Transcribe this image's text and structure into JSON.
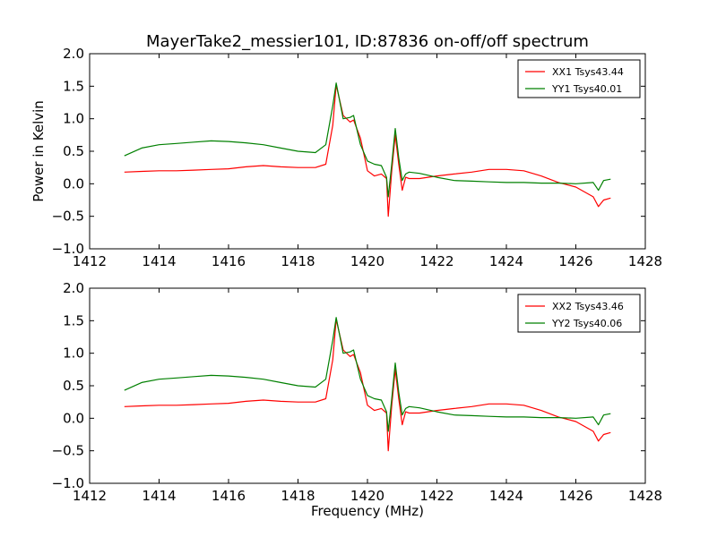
{
  "figure_title": "MayerTake2_messier101, ID:87836 on-off/off spectrum",
  "colors": {
    "xx": "#ff0000",
    "yy": "#008000",
    "axes": "#000000",
    "background": "#ffffff"
  },
  "chart_data": [
    {
      "type": "line",
      "title": "MayerTake2_messier101, ID:87836 on-off/off spectrum",
      "xlabel": "",
      "ylabel": "Power in Kelvin",
      "xlim": [
        1412,
        1428
      ],
      "ylim": [
        -1.0,
        2.0
      ],
      "xticks": [
        "1412",
        "1414",
        "1416",
        "1418",
        "1420",
        "1422",
        "1424",
        "1426",
        "1428"
      ],
      "yticks": [
        "−1.0",
        "−0.5",
        "0.0",
        "0.5",
        "1.0",
        "1.5",
        "2.0"
      ],
      "grid": false,
      "legend_position": "top-right",
      "x": [
        1413.0,
        1413.5,
        1414.0,
        1414.5,
        1415.0,
        1415.5,
        1416.0,
        1416.5,
        1417.0,
        1417.5,
        1418.0,
        1418.5,
        1418.8,
        1419.0,
        1419.1,
        1419.3,
        1419.5,
        1419.6,
        1419.8,
        1420.0,
        1420.2,
        1420.4,
        1420.55,
        1420.6,
        1420.7,
        1420.8,
        1420.9,
        1421.0,
        1421.1,
        1421.2,
        1421.5,
        1422.0,
        1422.5,
        1423.0,
        1423.5,
        1424.0,
        1424.5,
        1425.0,
        1425.5,
        1426.0,
        1426.5,
        1426.65,
        1426.8,
        1427.0
      ],
      "series": [
        {
          "name": "XX1 Tsys43.44",
          "color": "#ff0000",
          "values": [
            0.18,
            0.19,
            0.2,
            0.2,
            0.21,
            0.22,
            0.23,
            0.26,
            0.28,
            0.26,
            0.25,
            0.25,
            0.3,
            0.9,
            1.52,
            1.05,
            0.95,
            0.98,
            0.7,
            0.2,
            0.12,
            0.15,
            0.08,
            -0.5,
            0.2,
            0.75,
            0.3,
            -0.1,
            0.1,
            0.08,
            0.08,
            0.12,
            0.15,
            0.18,
            0.22,
            0.22,
            0.2,
            0.12,
            0.02,
            -0.05,
            -0.2,
            -0.35,
            -0.25,
            -0.22
          ]
        },
        {
          "name": "YY1 Tsys40.01",
          "color": "#008000",
          "values": [
            0.43,
            0.55,
            0.6,
            0.62,
            0.64,
            0.66,
            0.65,
            0.63,
            0.6,
            0.55,
            0.5,
            0.48,
            0.6,
            1.2,
            1.55,
            1.0,
            1.02,
            1.05,
            0.6,
            0.35,
            0.3,
            0.28,
            0.1,
            -0.2,
            0.3,
            0.85,
            0.4,
            0.05,
            0.15,
            0.18,
            0.16,
            0.1,
            0.05,
            0.04,
            0.03,
            0.02,
            0.02,
            0.01,
            0.01,
            0.0,
            0.02,
            -0.1,
            0.05,
            0.07
          ]
        }
      ]
    },
    {
      "type": "line",
      "title": "",
      "xlabel": "Frequency (MHz)",
      "ylabel": "",
      "xlim": [
        1412,
        1428
      ],
      "ylim": [
        -1.0,
        2.0
      ],
      "xticks": [
        "1412",
        "1414",
        "1416",
        "1418",
        "1420",
        "1422",
        "1424",
        "1426",
        "1428"
      ],
      "yticks": [
        "−1.0",
        "−0.5",
        "0.0",
        "0.5",
        "1.0",
        "1.5",
        "2.0"
      ],
      "grid": false,
      "legend_position": "top-right",
      "x": [
        1413.0,
        1413.5,
        1414.0,
        1414.5,
        1415.0,
        1415.5,
        1416.0,
        1416.5,
        1417.0,
        1417.5,
        1418.0,
        1418.5,
        1418.8,
        1419.0,
        1419.1,
        1419.3,
        1419.5,
        1419.6,
        1419.8,
        1420.0,
        1420.2,
        1420.4,
        1420.55,
        1420.6,
        1420.7,
        1420.8,
        1420.9,
        1421.0,
        1421.1,
        1421.2,
        1421.5,
        1422.0,
        1422.5,
        1423.0,
        1423.5,
        1424.0,
        1424.5,
        1425.0,
        1425.5,
        1426.0,
        1426.5,
        1426.65,
        1426.8,
        1427.0
      ],
      "series": [
        {
          "name": "XX2 Tsys43.46",
          "color": "#ff0000",
          "values": [
            0.18,
            0.19,
            0.2,
            0.2,
            0.21,
            0.22,
            0.23,
            0.26,
            0.28,
            0.26,
            0.25,
            0.25,
            0.3,
            0.9,
            1.52,
            1.05,
            0.95,
            0.98,
            0.7,
            0.2,
            0.12,
            0.15,
            0.08,
            -0.5,
            0.2,
            0.75,
            0.3,
            -0.1,
            0.1,
            0.08,
            0.08,
            0.12,
            0.15,
            0.18,
            0.22,
            0.22,
            0.2,
            0.12,
            0.02,
            -0.05,
            -0.2,
            -0.35,
            -0.25,
            -0.22
          ]
        },
        {
          "name": "YY2 Tsys40.06",
          "color": "#008000",
          "values": [
            0.43,
            0.55,
            0.6,
            0.62,
            0.64,
            0.66,
            0.65,
            0.63,
            0.6,
            0.55,
            0.5,
            0.48,
            0.6,
            1.2,
            1.55,
            1.0,
            1.02,
            1.05,
            0.6,
            0.35,
            0.3,
            0.28,
            0.1,
            -0.2,
            0.3,
            0.85,
            0.4,
            0.05,
            0.15,
            0.18,
            0.16,
            0.1,
            0.05,
            0.04,
            0.03,
            0.02,
            0.02,
            0.01,
            0.01,
            0.0,
            0.02,
            -0.1,
            0.05,
            0.07
          ]
        }
      ]
    }
  ]
}
